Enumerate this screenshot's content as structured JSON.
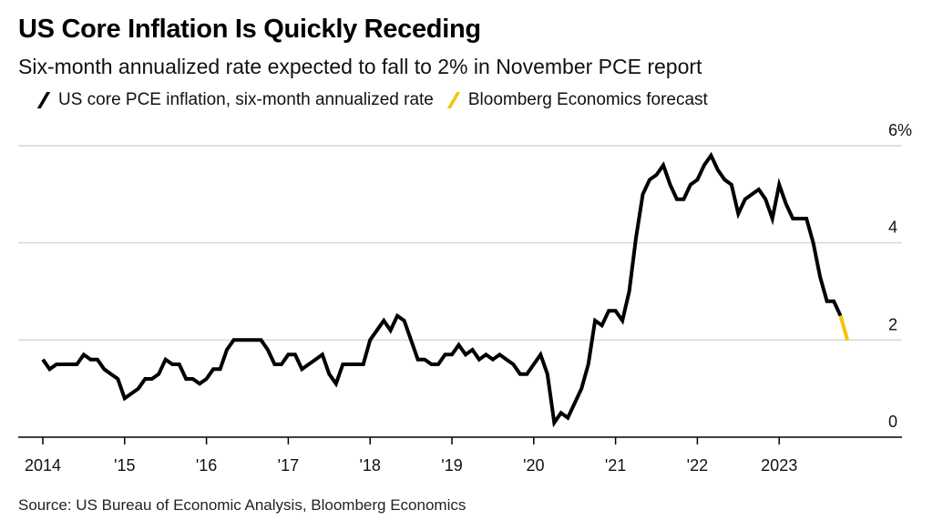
{
  "header": {
    "title": "US Core Inflation Is Quickly Receding",
    "subtitle": "Six-month annualized rate expected to fall to 2% in November PCE report"
  },
  "legend": [
    {
      "label": "US core PCE inflation, six-month annualized rate",
      "color": "#000000"
    },
    {
      "label": "Bloomberg Economics forecast",
      "color": "#f5c400"
    }
  ],
  "footer": {
    "source": "Source: US Bureau of Economic Analysis, Bloomberg Economics"
  },
  "chart_data": {
    "type": "line",
    "ylim": [
      0,
      6
    ],
    "y_ticks": [
      {
        "value": 0,
        "label": "0"
      },
      {
        "value": 2,
        "label": "2"
      },
      {
        "value": 4,
        "label": "4"
      },
      {
        "value": 6,
        "label": "6%"
      }
    ],
    "x_ticks": [
      {
        "year": 2014,
        "label": "2014"
      },
      {
        "year": 2015,
        "label": "'15"
      },
      {
        "year": 2016,
        "label": "'16"
      },
      {
        "year": 2017,
        "label": "'17"
      },
      {
        "year": 2018,
        "label": "'18"
      },
      {
        "year": 2019,
        "label": "'19"
      },
      {
        "year": 2020,
        "label": "'20"
      },
      {
        "year": 2021,
        "label": "'21"
      },
      {
        "year": 2022,
        "label": "'22"
      },
      {
        "year": 2023,
        "label": "2023"
      }
    ],
    "grid": true,
    "legend_position": "top-left",
    "series": [
      {
        "name": "US core PCE inflation, six-month annualized rate",
        "color": "#000000",
        "points": [
          [
            "2014-01",
            1.6
          ],
          [
            "2014-02",
            1.4
          ],
          [
            "2014-03",
            1.5
          ],
          [
            "2014-04",
            1.5
          ],
          [
            "2014-05",
            1.5
          ],
          [
            "2014-06",
            1.5
          ],
          [
            "2014-07",
            1.7
          ],
          [
            "2014-08",
            1.6
          ],
          [
            "2014-09",
            1.6
          ],
          [
            "2014-10",
            1.4
          ],
          [
            "2014-11",
            1.3
          ],
          [
            "2014-12",
            1.2
          ],
          [
            "2015-01",
            0.8
          ],
          [
            "2015-02",
            0.9
          ],
          [
            "2015-03",
            1.0
          ],
          [
            "2015-04",
            1.2
          ],
          [
            "2015-05",
            1.2
          ],
          [
            "2015-06",
            1.3
          ],
          [
            "2015-07",
            1.6
          ],
          [
            "2015-08",
            1.5
          ],
          [
            "2015-09",
            1.5
          ],
          [
            "2015-10",
            1.2
          ],
          [
            "2015-11",
            1.2
          ],
          [
            "2015-12",
            1.1
          ],
          [
            "2016-01",
            1.2
          ],
          [
            "2016-02",
            1.4
          ],
          [
            "2016-03",
            1.4
          ],
          [
            "2016-04",
            1.8
          ],
          [
            "2016-05",
            2.0
          ],
          [
            "2016-06",
            2.0
          ],
          [
            "2016-07",
            2.0
          ],
          [
            "2016-08",
            2.0
          ],
          [
            "2016-09",
            2.0
          ],
          [
            "2016-10",
            1.8
          ],
          [
            "2016-11",
            1.5
          ],
          [
            "2016-12",
            1.5
          ],
          [
            "2017-01",
            1.7
          ],
          [
            "2017-02",
            1.7
          ],
          [
            "2017-03",
            1.4
          ],
          [
            "2017-04",
            1.5
          ],
          [
            "2017-05",
            1.6
          ],
          [
            "2017-06",
            1.7
          ],
          [
            "2017-07",
            1.3
          ],
          [
            "2017-08",
            1.1
          ],
          [
            "2017-09",
            1.5
          ],
          [
            "2017-10",
            1.5
          ],
          [
            "2017-11",
            1.5
          ],
          [
            "2017-12",
            1.5
          ],
          [
            "2018-01",
            2.0
          ],
          [
            "2018-02",
            2.2
          ],
          [
            "2018-03",
            2.4
          ],
          [
            "2018-04",
            2.2
          ],
          [
            "2018-05",
            2.5
          ],
          [
            "2018-06",
            2.4
          ],
          [
            "2018-07",
            2.0
          ],
          [
            "2018-08",
            1.6
          ],
          [
            "2018-09",
            1.6
          ],
          [
            "2018-10",
            1.5
          ],
          [
            "2018-11",
            1.5
          ],
          [
            "2018-12",
            1.7
          ],
          [
            "2019-01",
            1.7
          ],
          [
            "2019-02",
            1.9
          ],
          [
            "2019-03",
            1.7
          ],
          [
            "2019-04",
            1.8
          ],
          [
            "2019-05",
            1.6
          ],
          [
            "2019-06",
            1.7
          ],
          [
            "2019-07",
            1.6
          ],
          [
            "2019-08",
            1.7
          ],
          [
            "2019-09",
            1.6
          ],
          [
            "2019-10",
            1.5
          ],
          [
            "2019-11",
            1.3
          ],
          [
            "2019-12",
            1.3
          ],
          [
            "2020-01",
            1.5
          ],
          [
            "2020-02",
            1.7
          ],
          [
            "2020-03",
            1.3
          ],
          [
            "2020-04",
            0.3
          ],
          [
            "2020-05",
            0.5
          ],
          [
            "2020-06",
            0.4
          ],
          [
            "2020-07",
            0.7
          ],
          [
            "2020-08",
            1.0
          ],
          [
            "2020-09",
            1.5
          ],
          [
            "2020-10",
            2.4
          ],
          [
            "2020-11",
            2.3
          ],
          [
            "2020-12",
            2.6
          ],
          [
            "2021-01",
            2.6
          ],
          [
            "2021-02",
            2.4
          ],
          [
            "2021-03",
            3.0
          ],
          [
            "2021-04",
            4.1
          ],
          [
            "2021-05",
            5.0
          ],
          [
            "2021-06",
            5.3
          ],
          [
            "2021-07",
            5.4
          ],
          [
            "2021-08",
            5.6
          ],
          [
            "2021-09",
            5.2
          ],
          [
            "2021-10",
            4.9
          ],
          [
            "2021-11",
            4.9
          ],
          [
            "2021-12",
            5.2
          ],
          [
            "2022-01",
            5.3
          ],
          [
            "2022-02",
            5.6
          ],
          [
            "2022-03",
            5.8
          ],
          [
            "2022-04",
            5.5
          ],
          [
            "2022-05",
            5.3
          ],
          [
            "2022-06",
            5.2
          ],
          [
            "2022-07",
            4.6
          ],
          [
            "2022-08",
            4.9
          ],
          [
            "2022-09",
            5.0
          ],
          [
            "2022-10",
            5.1
          ],
          [
            "2022-11",
            4.9
          ],
          [
            "2022-12",
            4.5
          ],
          [
            "2023-01",
            5.2
          ],
          [
            "2023-02",
            4.8
          ],
          [
            "2023-03",
            4.5
          ],
          [
            "2023-04",
            4.5
          ],
          [
            "2023-05",
            4.5
          ],
          [
            "2023-06",
            4.0
          ],
          [
            "2023-07",
            3.3
          ],
          [
            "2023-08",
            2.8
          ],
          [
            "2023-09",
            2.8
          ],
          [
            "2023-10",
            2.5
          ]
        ]
      },
      {
        "name": "Bloomberg Economics forecast",
        "color": "#f5c400",
        "points": [
          [
            "2023-10",
            2.5
          ],
          [
            "2023-11",
            2.0
          ]
        ]
      }
    ]
  }
}
